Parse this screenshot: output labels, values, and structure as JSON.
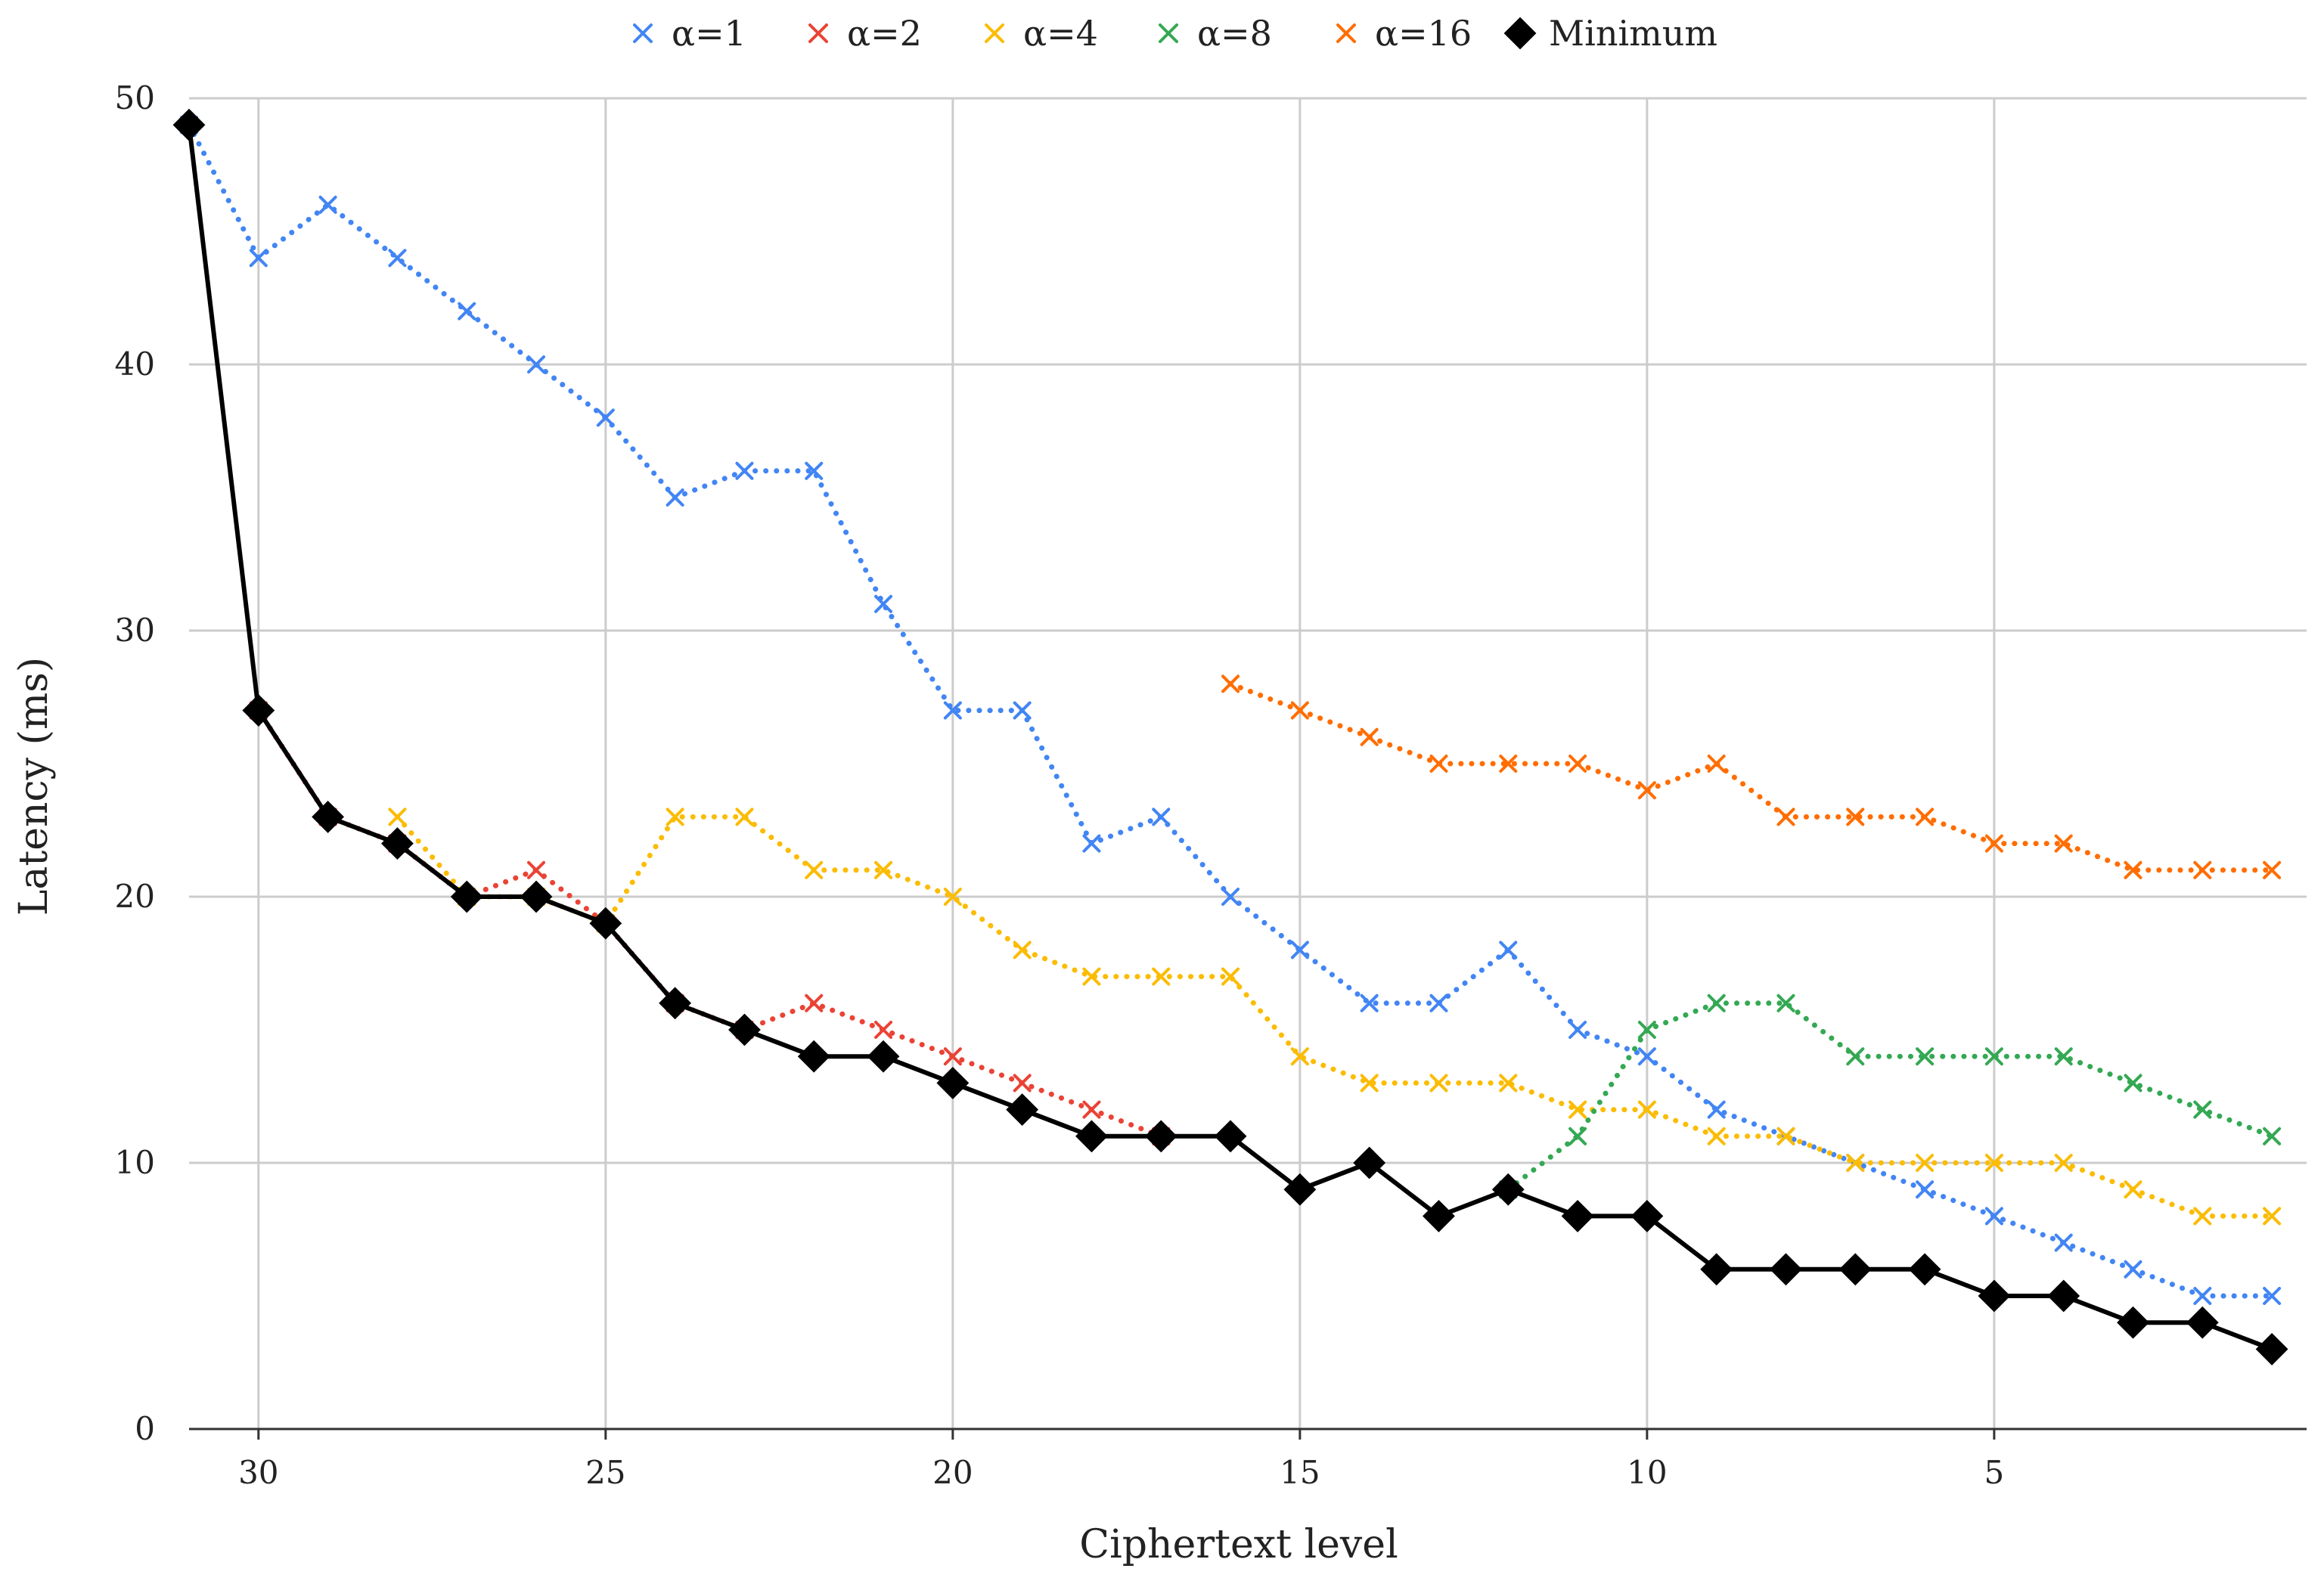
{
  "chart_data": {
    "type": "line",
    "title": "",
    "xlabel": "Ciphertext level",
    "ylabel": "Latency (ms)",
    "xlim": [
      31,
      0.5
    ],
    "ylim": [
      0,
      50
    ],
    "x_reversed": true,
    "grid": true,
    "legend_position": "top",
    "xticks": [
      30,
      25,
      20,
      15,
      10,
      5
    ],
    "yticks": [
      0,
      10,
      20,
      30,
      40,
      50
    ],
    "series": [
      {
        "name": "α=1",
        "color": "#4285F4",
        "style": "dotted",
        "marker": "x",
        "x": [
          31,
          30,
          29,
          28,
          27,
          26,
          25,
          24,
          23,
          22,
          21,
          20,
          19,
          18,
          17,
          16,
          15,
          14,
          13,
          12,
          11,
          10,
          9,
          8,
          7,
          6,
          5,
          4,
          3,
          2,
          1
        ],
        "values": [
          49,
          44,
          46,
          44,
          42,
          40,
          38,
          35,
          36,
          36,
          31,
          27,
          27,
          22,
          23,
          20,
          18,
          16,
          16,
          18,
          15,
          14,
          12,
          11,
          10,
          9,
          8,
          7,
          6,
          5,
          5
        ]
      },
      {
        "name": "α=2",
        "color": "#EA4335",
        "style": "dotted",
        "marker": "x",
        "x": [
          30,
          29,
          28,
          27,
          26,
          25,
          24,
          23,
          22,
          21,
          20,
          19,
          18,
          17
        ],
        "values": [
          27,
          23,
          22,
          20,
          21,
          19,
          16,
          15,
          16,
          15,
          14,
          13,
          12,
          11
        ]
      },
      {
        "name": "α=4",
        "color": "#FBBC04",
        "style": "dotted",
        "marker": "x",
        "x": [
          28,
          27,
          26,
          25,
          24,
          23,
          22,
          21,
          20,
          19,
          18,
          17,
          16,
          15,
          14,
          13,
          12,
          11,
          10,
          9,
          8,
          7,
          6,
          5,
          4,
          3,
          2,
          1
        ],
        "values": [
          23,
          20,
          20,
          19,
          23,
          23,
          21,
          21,
          20,
          18,
          17,
          17,
          17,
          14,
          13,
          13,
          13,
          12,
          12,
          11,
          11,
          10,
          10,
          10,
          10,
          9,
          8,
          8
        ]
      },
      {
        "name": "α=8",
        "color": "#34A853",
        "style": "dotted",
        "marker": "x",
        "x": [
          12,
          11,
          10,
          9,
          8,
          7,
          6,
          5,
          4,
          3,
          2,
          1
        ],
        "values": [
          9,
          11,
          15,
          16,
          16,
          14,
          14,
          14,
          14,
          13,
          12,
          11
        ]
      },
      {
        "name": "α=16",
        "color": "#FF6D01",
        "style": "dotted",
        "marker": "x",
        "x": [
          16,
          15,
          14,
          13,
          12,
          11,
          10,
          9,
          8,
          7,
          6,
          5,
          4,
          3,
          2,
          1
        ],
        "values": [
          28,
          27,
          26,
          25,
          25,
          25,
          24,
          25,
          23,
          23,
          23,
          22,
          22,
          21,
          21,
          21
        ]
      },
      {
        "name": "Minimum",
        "color": "#000000",
        "style": "solid",
        "marker": "diamond",
        "x": [
          31,
          30,
          29,
          28,
          27,
          26,
          25,
          24,
          23,
          22,
          21,
          20,
          19,
          18,
          17,
          16,
          15,
          14,
          13,
          12,
          11,
          10,
          9,
          8,
          7,
          6,
          5,
          4,
          3,
          2,
          1
        ],
        "values": [
          49,
          27,
          23,
          22,
          20,
          20,
          19,
          16,
          15,
          14,
          14,
          13,
          12,
          11,
          11,
          11,
          9,
          10,
          8,
          9,
          8,
          8,
          6,
          6,
          6,
          6,
          5,
          5,
          4,
          4,
          3
        ]
      }
    ]
  }
}
